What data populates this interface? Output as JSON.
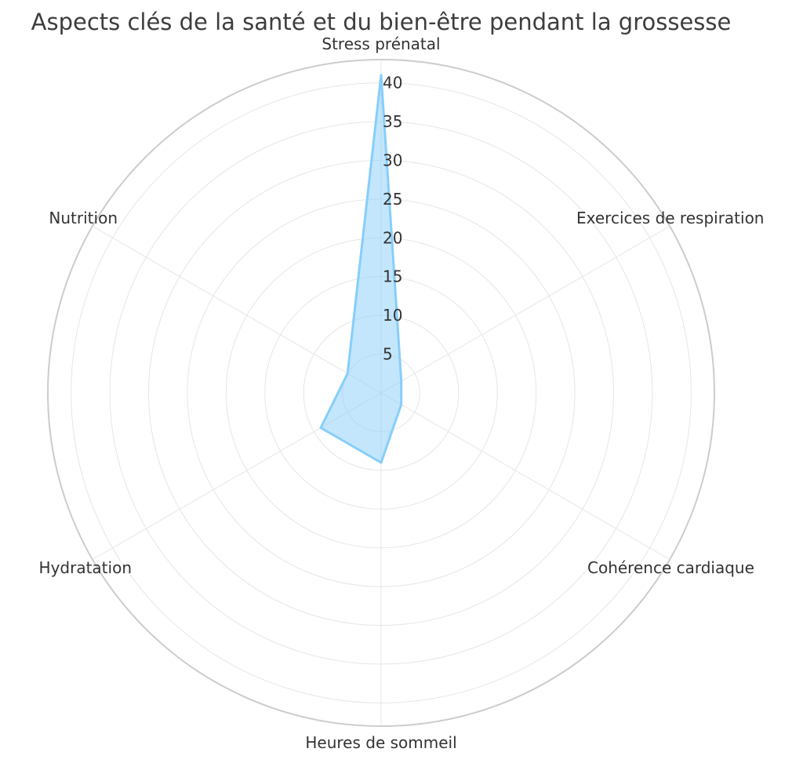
{
  "chart_data": {
    "type": "radar",
    "title": "Aspects clés de la santé et du bien-être pendant la grossesse",
    "categories": [
      "Stress prénatal",
      "Exercices de respiration",
      "Cohérence cardiaque",
      "Heures de sommeil",
      "Hydratation",
      "Nutrition"
    ],
    "series": [
      {
        "values": [
          41,
          3,
          3,
          9,
          9,
          5
        ]
      }
    ],
    "rlim": [
      0,
      43
    ],
    "ticks": [
      5,
      10,
      15,
      20,
      25,
      30,
      35,
      40
    ],
    "tick_labels": [
      "5",
      "10",
      "15",
      "20",
      "25",
      "30",
      "35",
      "40"
    ],
    "grid": true,
    "colors": {
      "series": "#87cefa",
      "grid": "#e6e6e6",
      "outer": "#cccccc",
      "text": "#333333"
    }
  }
}
